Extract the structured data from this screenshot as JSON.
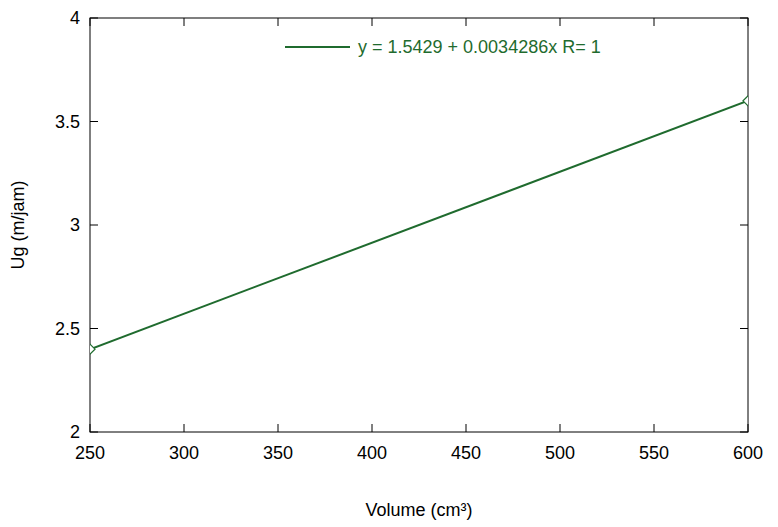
{
  "chart_data": {
    "type": "line",
    "x_label": "Volume (cm³)",
    "y_label": "Ug (m/jam)",
    "x": [
      250,
      600
    ],
    "series": [
      {
        "name": "y = 1.5429 + 0.0034286x R= 1",
        "color": "#1f6b2e",
        "values": [
          2.4,
          3.6
        ],
        "marker": "diamond",
        "line_style": "solid"
      }
    ],
    "xlim": [
      250,
      600
    ],
    "xticks": [
      250,
      300,
      350,
      400,
      450,
      500,
      550,
      600
    ],
    "ylim": [
      2,
      4
    ],
    "yticks": [
      2,
      2.5,
      3,
      3.5,
      4
    ],
    "grid": false,
    "legend": "top"
  }
}
